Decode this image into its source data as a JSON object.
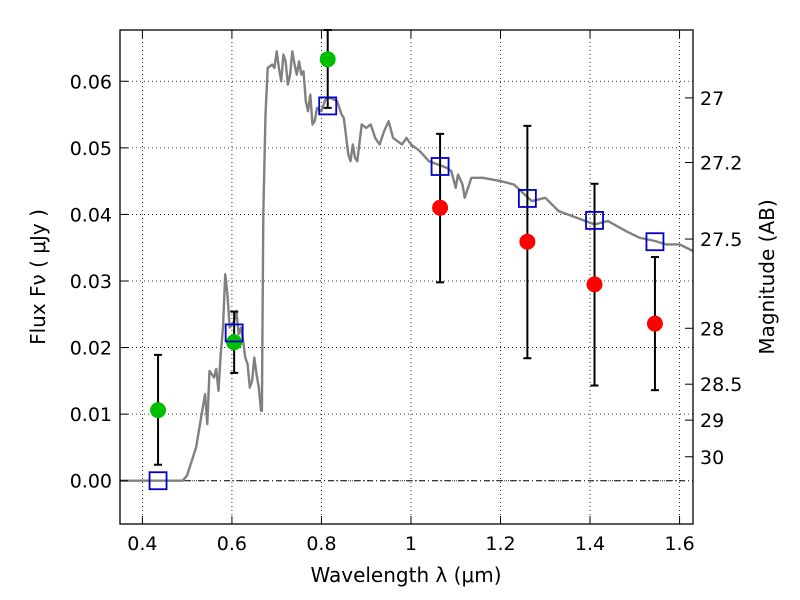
{
  "chart_data": {
    "type": "scatter",
    "title": "",
    "xlabel": "Wavelength  λ (μm)",
    "ylabel": "Flux  Fν  ( μJy )",
    "ylabel_right": "Magnitude (AB)",
    "xlim": [
      0.35,
      1.63
    ],
    "ylim": [
      -0.0065,
      0.0677
    ],
    "grid": true,
    "x_ticks": [
      0.4,
      0.6,
      0.8,
      1.0,
      1.2,
      1.4,
      1.6
    ],
    "x_tick_labels": [
      "0.4",
      "0.6",
      "0.8",
      "1",
      "1.2",
      "1.4",
      "1.6"
    ],
    "y_ticks": [
      0.0,
      0.01,
      0.02,
      0.03,
      0.04,
      0.05,
      0.06
    ],
    "y_tick_labels": [
      "0.00",
      "0.01",
      "0.02",
      "0.03",
      "0.04",
      "0.05",
      "0.06"
    ],
    "right_ticks": [
      {
        "label": "27",
        "flux": 0.0575
      },
      {
        "label": "27.2",
        "flux": 0.0478
      },
      {
        "label": "27.5",
        "flux": 0.0363
      },
      {
        "label": "28",
        "flux": 0.0229
      },
      {
        "label": "28.5",
        "flux": 0.0145
      },
      {
        "label": "29",
        "flux": 0.0091
      },
      {
        "label": "30",
        "flux": 0.0036
      }
    ],
    "series": [
      {
        "type": "line",
        "color": "#808080",
        "points": [
          [
            0.35,
            0.0
          ],
          [
            0.44,
            0.0
          ],
          [
            0.49,
            0.0
          ],
          [
            0.5,
            0.0008
          ],
          [
            0.52,
            0.005
          ],
          [
            0.535,
            0.011
          ],
          [
            0.54,
            0.013
          ],
          [
            0.545,
            0.0085
          ],
          [
            0.55,
            0.0165
          ],
          [
            0.56,
            0.0155
          ],
          [
            0.565,
            0.0168
          ],
          [
            0.57,
            0.0135
          ],
          [
            0.575,
            0.019
          ],
          [
            0.58,
            0.023
          ],
          [
            0.585,
            0.031
          ],
          [
            0.59,
            0.028
          ],
          [
            0.595,
            0.023
          ],
          [
            0.6,
            0.0235
          ],
          [
            0.605,
            0.024
          ],
          [
            0.61,
            0.0255
          ],
          [
            0.615,
            0.022
          ],
          [
            0.62,
            0.023
          ],
          [
            0.625,
            0.021
          ],
          [
            0.63,
            0.0185
          ],
          [
            0.635,
            0.0175
          ],
          [
            0.64,
            0.014
          ],
          [
            0.645,
            0.015
          ],
          [
            0.65,
            0.0185
          ],
          [
            0.655,
            0.016
          ],
          [
            0.66,
            0.014
          ],
          [
            0.665,
            0.0105
          ],
          [
            0.667,
            0.0105
          ],
          [
            0.67,
            0.04
          ],
          [
            0.675,
            0.055
          ],
          [
            0.68,
            0.062
          ],
          [
            0.69,
            0.0625
          ],
          [
            0.695,
            0.062
          ],
          [
            0.7,
            0.0645
          ],
          [
            0.705,
            0.062
          ],
          [
            0.71,
            0.06
          ],
          [
            0.715,
            0.064
          ],
          [
            0.72,
            0.063
          ],
          [
            0.725,
            0.0595
          ],
          [
            0.73,
            0.061
          ],
          [
            0.735,
            0.0645
          ],
          [
            0.74,
            0.0625
          ],
          [
            0.745,
            0.061
          ],
          [
            0.75,
            0.063
          ],
          [
            0.755,
            0.061
          ],
          [
            0.76,
            0.0615
          ],
          [
            0.765,
            0.057
          ],
          [
            0.77,
            0.0555
          ],
          [
            0.775,
            0.058
          ],
          [
            0.78,
            0.0535
          ],
          [
            0.785,
            0.054
          ],
          [
            0.79,
            0.056
          ],
          [
            0.8,
            0.0555
          ],
          [
            0.81,
            0.0575
          ],
          [
            0.82,
            0.0575
          ],
          [
            0.835,
            0.057
          ],
          [
            0.845,
            0.055
          ],
          [
            0.85,
            0.0545
          ],
          [
            0.86,
            0.049
          ],
          [
            0.865,
            0.048
          ],
          [
            0.87,
            0.0505
          ],
          [
            0.875,
            0.0485
          ],
          [
            0.88,
            0.048
          ],
          [
            0.89,
            0.0535
          ],
          [
            0.9,
            0.053
          ],
          [
            0.91,
            0.0535
          ],
          [
            0.92,
            0.0515
          ],
          [
            0.93,
            0.0505
          ],
          [
            0.94,
            0.0525
          ],
          [
            0.95,
            0.054
          ],
          [
            0.96,
            0.0515
          ],
          [
            0.97,
            0.051
          ],
          [
            0.98,
            0.0505
          ],
          [
            0.99,
            0.0515
          ],
          [
            1.0,
            0.0505
          ],
          [
            1.01,
            0.05
          ],
          [
            1.02,
            0.0495
          ],
          [
            1.04,
            0.048
          ],
          [
            1.06,
            0.0475
          ],
          [
            1.08,
            0.047
          ],
          [
            1.09,
            0.0465
          ],
          [
            1.1,
            0.044
          ],
          [
            1.105,
            0.046
          ],
          [
            1.115,
            0.0445
          ],
          [
            1.12,
            0.0425
          ],
          [
            1.135,
            0.0455
          ],
          [
            1.16,
            0.0455
          ],
          [
            1.2,
            0.045
          ],
          [
            1.23,
            0.0445
          ],
          [
            1.27,
            0.042
          ],
          [
            1.3,
            0.0425
          ],
          [
            1.33,
            0.0405
          ],
          [
            1.37,
            0.0395
          ],
          [
            1.41,
            0.0385
          ],
          [
            1.44,
            0.039
          ],
          [
            1.48,
            0.0375
          ],
          [
            1.51,
            0.0365
          ],
          [
            1.545,
            0.036
          ],
          [
            1.57,
            0.0355
          ],
          [
            1.6,
            0.0355
          ],
          [
            1.63,
            0.0345
          ]
        ]
      },
      {
        "type": "scatter",
        "marker": "circle",
        "color": "#00bf00",
        "points": [
          [
            0.435,
            0.0106
          ],
          [
            0.605,
            0.0208
          ],
          [
            0.814,
            0.0633
          ]
        ]
      },
      {
        "type": "scatter",
        "marker": "circle",
        "color": "#ff0000",
        "points": [
          [
            1.065,
            0.041
          ],
          [
            1.26,
            0.0359
          ],
          [
            1.41,
            0.0295
          ],
          [
            1.545,
            0.0236
          ]
        ]
      },
      {
        "type": "scatter",
        "marker": "square-open",
        "color": "#0000cc",
        "points": [
          [
            0.435,
            0.0
          ],
          [
            0.605,
            0.0222
          ],
          [
            0.814,
            0.0563
          ],
          [
            1.065,
            0.0472
          ],
          [
            1.26,
            0.0424
          ],
          [
            1.41,
            0.0391
          ],
          [
            1.545,
            0.0359
          ]
        ]
      },
      {
        "type": "errorbar",
        "color": "#000000",
        "bars": [
          {
            "x": 0.435,
            "low": 0.0024,
            "high": 0.0189
          },
          {
            "x": 0.605,
            "low": 0.0162,
            "high": 0.0254
          },
          {
            "x": 0.814,
            "low": 0.056,
            "high": 0.0677
          },
          {
            "x": 1.065,
            "low": 0.0298,
            "high": 0.0521
          },
          {
            "x": 1.26,
            "low": 0.0184,
            "high": 0.0533
          },
          {
            "x": 1.41,
            "low": 0.0143,
            "high": 0.0446
          },
          {
            "x": 1.545,
            "low": 0.0136,
            "high": 0.0336
          }
        ]
      }
    ]
  }
}
